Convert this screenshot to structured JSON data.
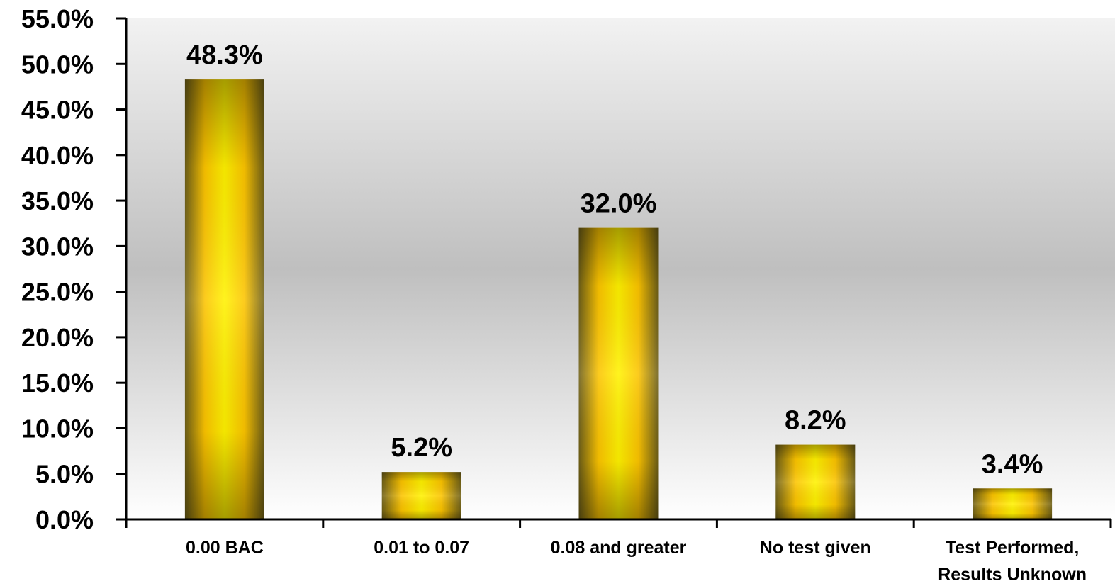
{
  "chart_data": {
    "type": "bar",
    "title": "",
    "xlabel": "",
    "ylabel": "",
    "categories": [
      [
        "0.00 BAC"
      ],
      [
        "0.01 to 0.07"
      ],
      [
        "0.08 and greater"
      ],
      [
        "No test given"
      ],
      [
        "Test Performed,",
        "Results Unknown"
      ]
    ],
    "values": [
      48.3,
      5.2,
      32.0,
      8.2,
      3.4
    ],
    "data_labels": [
      "48.3%",
      "5.2%",
      "32.0%",
      "8.2%",
      "3.4%"
    ],
    "ylim": [
      0,
      55
    ],
    "yticks": [
      0,
      5,
      10,
      15,
      20,
      25,
      30,
      35,
      40,
      45,
      50,
      55
    ],
    "ytick_labels": [
      "0.0%",
      "5.0%",
      "10.0%",
      "15.0%",
      "20.0%",
      "25.0%",
      "30.0%",
      "35.0%",
      "40.0%",
      "45.0%",
      "50.0%",
      "55.0%"
    ],
    "grid": false,
    "legend": "none",
    "colors": {
      "bar_center": "#fff200",
      "bar_mid": "#fcc400",
      "bar_edge": "#6e5f17",
      "plot_bg_top": "#f2f2f2",
      "plot_bg_mid": "#bfbfbf",
      "plot_bg_bottom": "#ffffff",
      "axis": "#000000"
    }
  }
}
